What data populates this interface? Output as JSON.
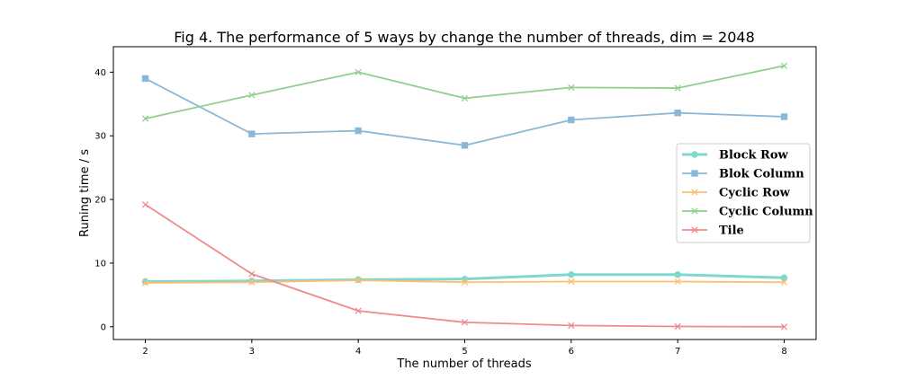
{
  "chart_data": {
    "type": "line",
    "title": "Fig 4. The performance of 5 ways by change the number of threads, dim = 2048",
    "xlabel": "The number of threads",
    "ylabel": "Runing time / s",
    "x": [
      2,
      3,
      4,
      5,
      6,
      7,
      8
    ],
    "xlim": [
      1.7,
      8.3
    ],
    "ylim": [
      -2,
      44
    ],
    "xticks": [
      "2",
      "3",
      "4",
      "5",
      "6",
      "7",
      "8"
    ],
    "yticks": [
      "0",
      "10",
      "20",
      "30",
      "40"
    ],
    "ytick_values": [
      0,
      10,
      20,
      30,
      40
    ],
    "grid": false,
    "legend_position": "center-right",
    "series": [
      {
        "name": "Block Row",
        "color": "#7fd7cf",
        "marker": "circle",
        "values": [
          7.1,
          7.2,
          7.4,
          7.5,
          8.2,
          8.2,
          7.7
        ]
      },
      {
        "name": "Blok Column",
        "color": "#8ab8d9",
        "marker": "square",
        "values": [
          39.0,
          30.3,
          30.8,
          28.5,
          32.5,
          33.6,
          33.0
        ]
      },
      {
        "name": "Cyclic Row",
        "color": "#fdbf6f",
        "marker": "x",
        "values": [
          6.9,
          7.0,
          7.3,
          7.0,
          7.1,
          7.1,
          7.0
        ]
      },
      {
        "name": "Cyclic Column",
        "color": "#8fd18c",
        "marker": "x",
        "values": [
          32.7,
          36.4,
          40.0,
          35.9,
          37.6,
          37.5,
          41.0
        ]
      },
      {
        "name": "Tile",
        "color": "#ee8c8a",
        "marker": "x",
        "values": [
          19.2,
          8.3,
          2.5,
          0.7,
          0.2,
          0.05,
          0.0
        ]
      }
    ]
  }
}
